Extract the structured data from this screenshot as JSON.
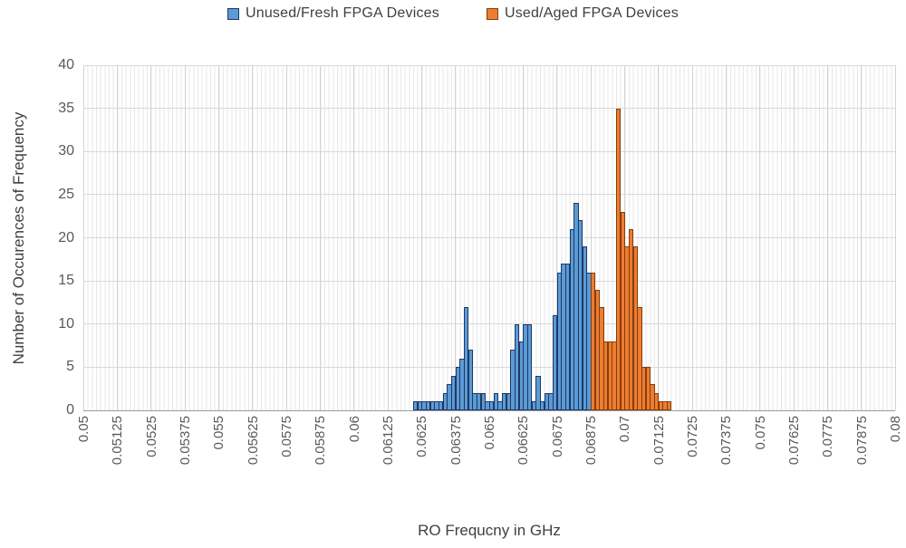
{
  "legend": {
    "items": [
      {
        "label": "Unused/Fresh FPGA Devices",
        "color": "#5b9bd5",
        "border_color": "#1f3864"
      },
      {
        "label": "Used/Aged FPGA Devices",
        "color": "#ed7d31",
        "border_color": "#843c0c"
      }
    ]
  },
  "chart_data": {
    "type": "bar",
    "subtype": "histogram",
    "title": "",
    "xlabel": "RO Frequcny in GHz",
    "ylabel": "Number of Occurences of Frequency",
    "x_range_ghz": [
      0.05,
      0.08
    ],
    "x_tick_step_ghz": 0.00125,
    "x_tick_labels": [
      "0.05",
      "0.05125",
      "0.0525",
      "0.05375",
      "0.055",
      "0.05625",
      "0.0575",
      "0.05875",
      "0.06",
      "0.06125",
      "0.0625",
      "0.06375",
      "0.065",
      "0.06625",
      "0.0675",
      "0.06875",
      "0.07",
      "0.07125",
      "0.0725",
      "0.07375",
      "0.075",
      "0.07625",
      "0.0775",
      "0.07875",
      "0.08"
    ],
    "y_ticks": [
      0,
      5,
      10,
      15,
      20,
      25,
      30,
      35,
      40
    ],
    "ylim": [
      0,
      40
    ],
    "grid": {
      "horizontal": "major",
      "vertical": "minor-per-bin",
      "on": true
    },
    "legend_position": "top-center",
    "bin_width_ghz": 0.00015625,
    "series": [
      {
        "name": "Unused/Fresh FPGA Devices",
        "color": "#5b9bd5",
        "border_color": "#1f3864",
        "start_ghz": 0.0621875,
        "bin_counts": [
          1,
          1,
          1,
          1,
          1,
          1,
          1,
          2,
          3,
          4,
          5,
          6,
          12,
          7,
          2,
          2,
          2,
          1,
          1,
          2,
          1,
          2,
          2,
          7,
          10,
          8,
          10,
          10,
          1,
          4,
          1,
          2,
          2,
          11,
          16,
          17,
          17,
          21,
          24,
          22,
          19,
          16
        ]
      },
      {
        "name": "Used/Aged FPGA Devices",
        "color": "#ed7d31",
        "border_color": "#843c0c",
        "start_ghz": 0.06875,
        "bin_counts": [
          16,
          14,
          12,
          8,
          8,
          8,
          35,
          23,
          19,
          21,
          19,
          12,
          5,
          5,
          3,
          2,
          1,
          1,
          1
        ]
      }
    ]
  }
}
